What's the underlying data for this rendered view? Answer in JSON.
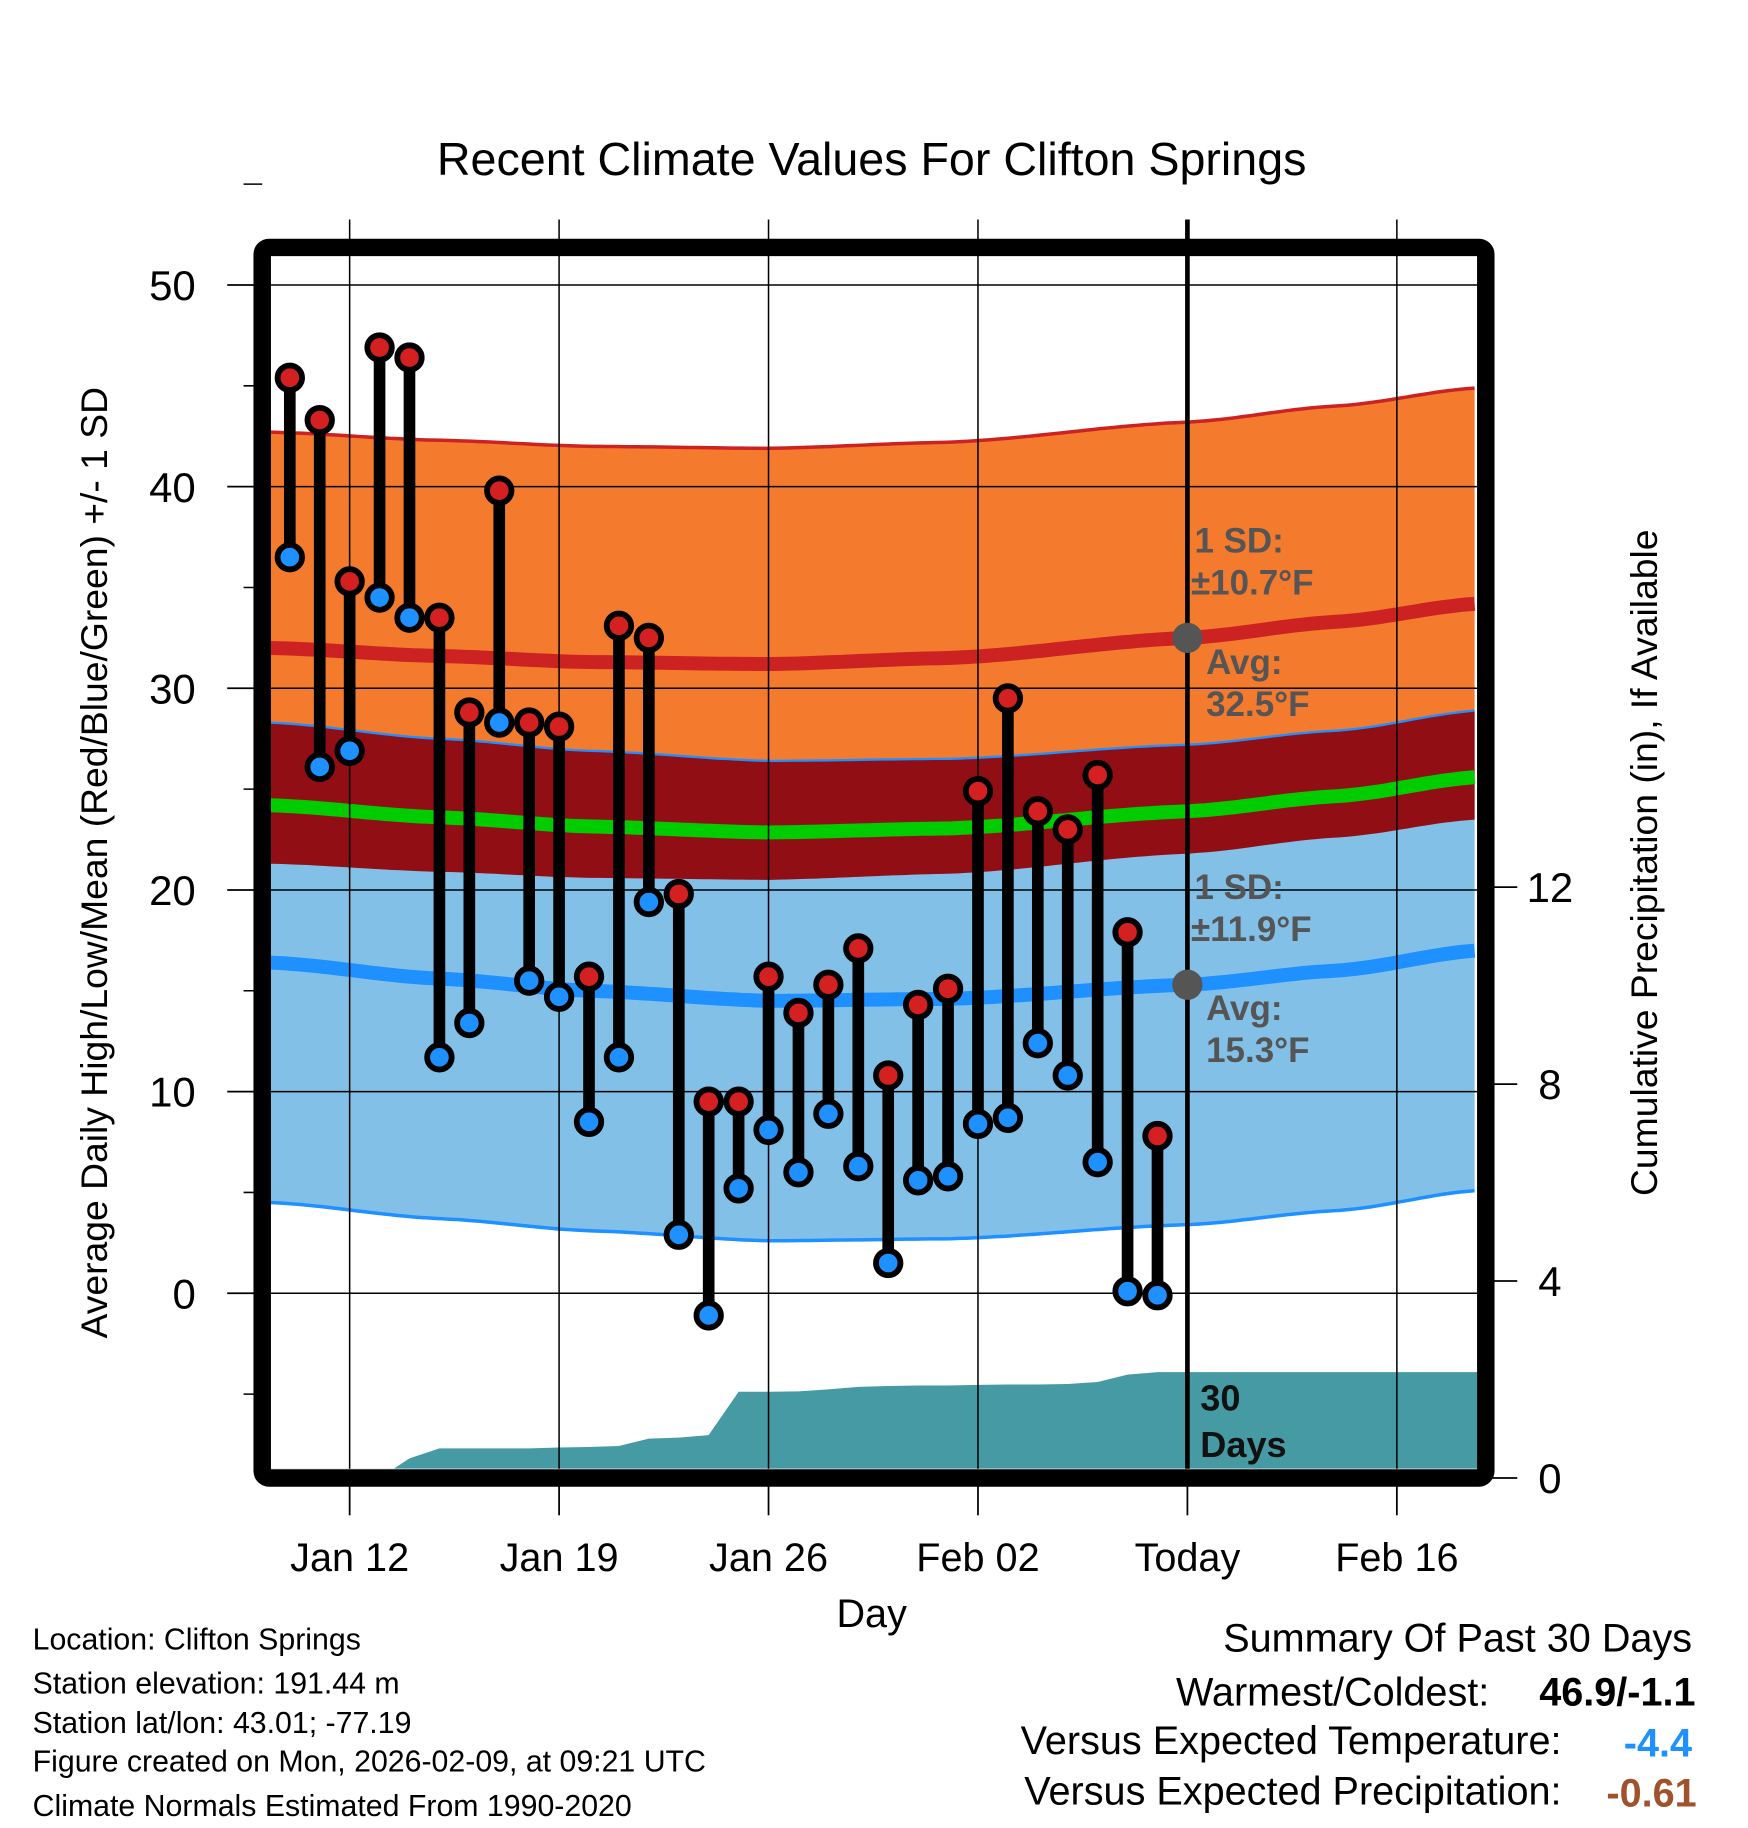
{
  "chart_data": {
    "type": "line",
    "title": "Recent Climate Values For Clifton Springs",
    "xlabel": "Day",
    "ylabel": "Average Daily High/Low/Mean (Red/Blue/Green) +/- 1 SD",
    "y2label": "Cumulative Precipitation (in), If Available",
    "ylim": [
      -8.7,
      51.4
    ],
    "y2lim": [
      0,
      24.8
    ],
    "xlim_days_from_jan10": [
      -0.65,
      39.7
    ],
    "y_ticks": [
      "0",
      "10",
      "20",
      "30",
      "40",
      "50"
    ],
    "y_tick_values": [
      0,
      10,
      20,
      30,
      40,
      50
    ],
    "y2_ticks": [
      "0",
      "4",
      "8",
      "12"
    ],
    "y2_tick_values": [
      0,
      4,
      8,
      12
    ],
    "x_ticks": [
      {
        "label": "Jan 12",
        "day": 2
      },
      {
        "label": "Jan 19",
        "day": 9
      },
      {
        "label": "Jan 26",
        "day": 16
      },
      {
        "label": "Feb 02",
        "day": 23
      },
      {
        "label": "Today",
        "day": 30
      },
      {
        "label": "Feb 16",
        "day": 37
      }
    ],
    "dates": [
      "Jan 10",
      "Jan 11",
      "Jan 12",
      "Jan 13",
      "Jan 14",
      "Jan 15",
      "Jan 16",
      "Jan 17",
      "Jan 18",
      "Jan 19",
      "Jan 20",
      "Jan 21",
      "Jan 22",
      "Jan 23",
      "Jan 24",
      "Jan 25",
      "Jan 26",
      "Jan 27",
      "Jan 28",
      "Jan 29",
      "Jan 30",
      "Jan 31",
      "Feb 01",
      "Feb 02",
      "Feb 03",
      "Feb 04",
      "Feb 05",
      "Feb 06",
      "Feb 07",
      "Feb 08"
    ],
    "series": [
      {
        "name": "Daily High",
        "color": "#d42020",
        "values": [
          45.4,
          43.3,
          35.3,
          46.9,
          46.4,
          33.5,
          28.8,
          39.8,
          28.3,
          28.1,
          15.7,
          33.1,
          32.5,
          19.8,
          9.5,
          9.5,
          15.7,
          13.9,
          15.3,
          17.1,
          10.8,
          14.3,
          15.1,
          24.9,
          29.5,
          23.9,
          23.0,
          25.7,
          17.9,
          7.8
        ]
      },
      {
        "name": "Daily Low",
        "color": "#1e90ff",
        "values": [
          36.5,
          26.1,
          26.9,
          34.5,
          33.5,
          11.7,
          13.4,
          28.3,
          15.5,
          14.7,
          8.5,
          11.7,
          19.4,
          2.9,
          -1.1,
          5.2,
          8.1,
          6.0,
          8.9,
          6.3,
          1.5,
          5.6,
          5.8,
          8.4,
          8.7,
          12.4,
          10.8,
          6.5,
          0.1,
          -0.1
        ]
      },
      {
        "name": "Cumulative Precipitation",
        "color": "#469aa3",
        "axis": "right",
        "values": [
          0,
          0,
          0,
          0,
          0.4,
          0.6,
          0.6,
          0.6,
          0.6,
          0.62,
          0.63,
          0.65,
          0.8,
          0.82,
          0.87,
          1.75,
          1.75,
          1.76,
          1.8,
          1.85,
          1.87,
          1.88,
          1.88,
          1.89,
          1.9,
          1.9,
          1.91,
          1.95,
          2.1,
          2.15
        ]
      }
    ],
    "normals": {
      "days": [
        -0.65,
        5,
        10,
        16,
        22,
        30,
        35,
        39.7
      ],
      "avg_high": [
        32.0,
        31.6,
        31.3,
        31.2,
        31.5,
        32.5,
        33.3,
        34.2
      ],
      "avg_low": [
        16.4,
        15.6,
        15.0,
        14.5,
        14.6,
        15.3,
        16.0,
        17.0
      ],
      "sd_high": 10.7,
      "sd_low": 11.9,
      "colors": {
        "high_band": "#f47a2e",
        "low_band": "#82c0e8",
        "overlap": "#910e15",
        "high_line": "#cc2222",
        "low_line": "#1e90ff",
        "mean_line": "#00cc00"
      }
    },
    "annotations": {
      "high_sd_label": "1 SD:",
      "high_sd_value": "±10.7°F",
      "high_avg_label": "Avg:",
      "high_avg_value": "32.5°F",
      "low_sd_label": "1 SD:",
      "low_sd_value": "±11.9°F",
      "low_avg_label": "Avg:",
      "low_avg_value": "15.3°F",
      "precip_label_1": "30",
      "precip_label_2": "Days"
    },
    "grid": true
  },
  "footer": {
    "location": "Location: Clifton Springs",
    "elevation": "Station elevation: 191.44 m",
    "latlon": "Station lat/lon: 43.01; -77.19",
    "created": "Figure created on Mon, 2026-02-09, at 09:21 UTC",
    "normals": "Climate Normals Estimated From 1990-2020"
  },
  "summary": {
    "title": "Summary Of Past 30 Days",
    "warmest_label": "Warmest/Coldest:",
    "warmest_value": "46.9/-1.1",
    "temp_label": "Versus Expected Temperature:",
    "temp_value": "-4.4",
    "temp_color": "#1e90ff",
    "precip_label": "Versus Expected Precipitation:",
    "precip_value": "-0.61",
    "precip_color": "#a0522d"
  }
}
